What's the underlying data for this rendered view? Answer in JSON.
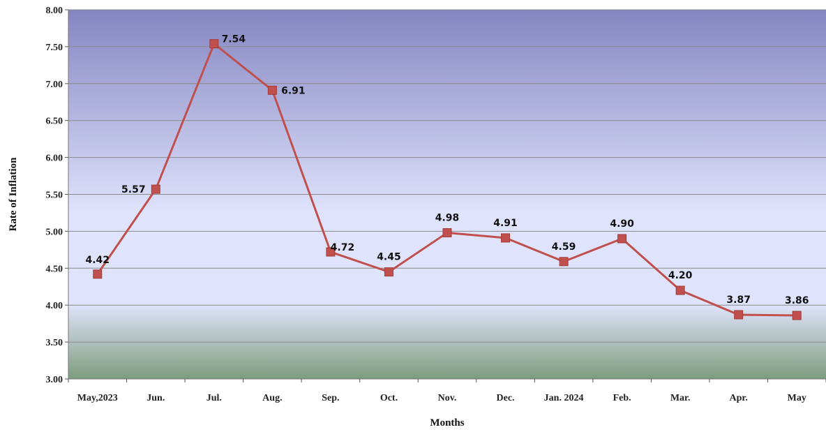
{
  "chart_data": {
    "type": "line",
    "xlabel": "Months",
    "ylabel": "Rate of Inflation",
    "categories": [
      "May,2023",
      "Jun.",
      "Jul.",
      "Aug.",
      "Sep.",
      "Oct.",
      "Nov.",
      "Dec.",
      "Jan. 2024",
      "Feb.",
      "Mar.",
      "Apr.",
      "May"
    ],
    "series": [
      {
        "values": [
          4.42,
          5.57,
          7.54,
          6.91,
          4.72,
          4.45,
          4.98,
          4.91,
          4.59,
          4.9,
          4.2,
          3.87,
          3.86
        ],
        "data_labels": [
          "4.42",
          "5.57",
          "7.54",
          "6.91",
          "4.72",
          "4.45",
          "4.98",
          "4.91",
          "4.59",
          "4.90",
          "4.20",
          "3.87",
          "3.86"
        ],
        "color": "#c0504d"
      }
    ],
    "ylim": [
      3.0,
      8.0
    ],
    "yticks": [
      3.0,
      3.5,
      4.0,
      4.5,
      5.0,
      5.5,
      6.0,
      6.5,
      7.0,
      7.5,
      8.0
    ],
    "ytick_labels": [
      "3.00",
      "3.50",
      "4.00",
      "4.50",
      "5.00",
      "5.50",
      "6.00",
      "6.50",
      "7.00",
      "7.50",
      "8.00"
    ],
    "grid": true,
    "legend": "none",
    "colors": {
      "plot_top": "#8585c2",
      "plot_mid": "#dfe3fb",
      "plot_bottom": "#7d9d7d",
      "gridline": "#8a8a8a",
      "line": "#c0504d"
    }
  }
}
